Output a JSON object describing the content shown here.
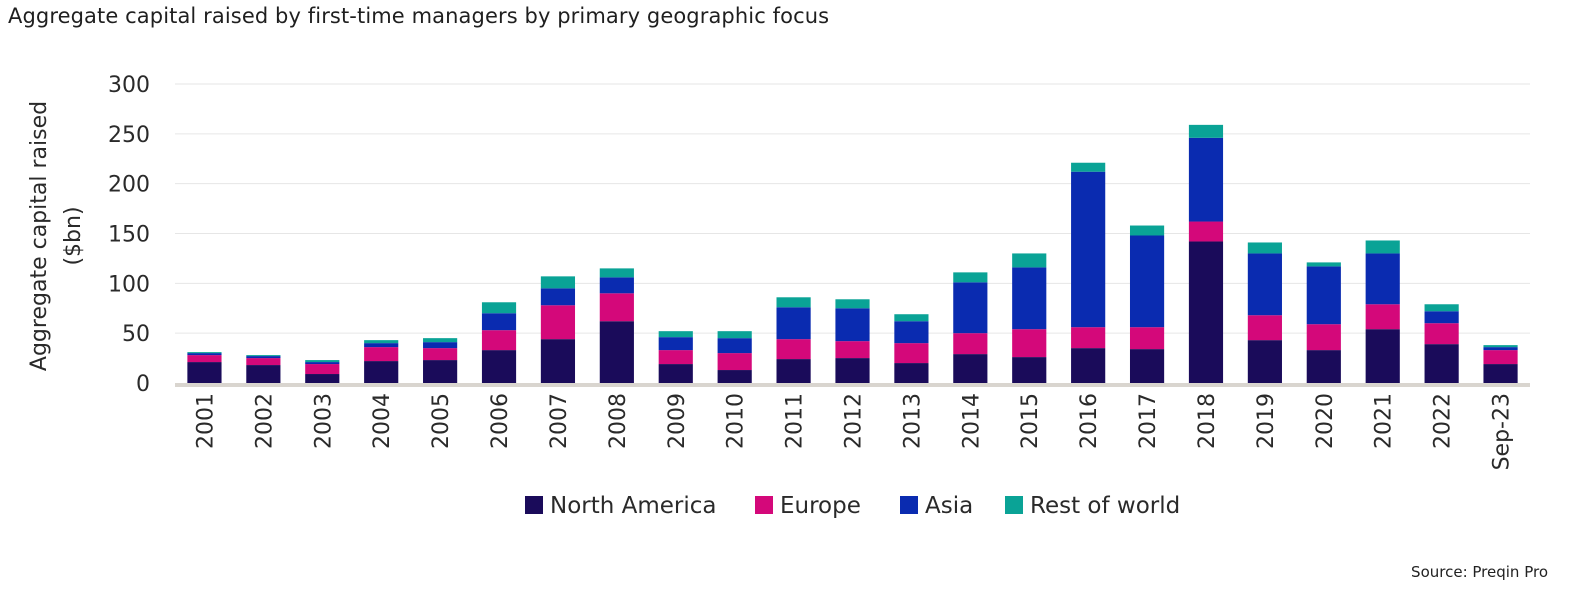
{
  "chart_data": {
    "type": "bar",
    "stacked": true,
    "title": "Aggregate capital raised by first-time managers by primary geographic focus",
    "ylabel": [
      "Aggregate capital raised",
      "($bn)"
    ],
    "xlabel": "",
    "ylim": [
      0,
      300
    ],
    "yticks": [
      0,
      50,
      100,
      150,
      200,
      250,
      300
    ],
    "ytick_labels": [
      "0",
      "50",
      "100",
      "150",
      "200",
      "250",
      "300"
    ],
    "grid": true,
    "legend_position": "bottom-center",
    "categories": [
      "2001",
      "2002",
      "2003",
      "2004",
      "2005",
      "2006",
      "2007",
      "2008",
      "2009",
      "2010",
      "2011",
      "2012",
      "2013",
      "2014",
      "2015",
      "2016",
      "2017",
      "2018",
      "2019",
      "2020",
      "2021",
      "2022",
      "Sep-23"
    ],
    "series": [
      {
        "name": "North America",
        "color": "#1a0b5a",
        "values": [
          21,
          18,
          9,
          22,
          23,
          33,
          44,
          62,
          19,
          13,
          24,
          25,
          20,
          29,
          26,
          35,
          34,
          142,
          43,
          33,
          54,
          39,
          19
        ]
      },
      {
        "name": "Europe",
        "color": "#d4087a",
        "values": [
          7,
          7,
          10,
          14,
          12,
          20,
          34,
          28,
          14,
          17,
          20,
          17,
          20,
          21,
          28,
          21,
          22,
          20,
          25,
          26,
          25,
          21,
          14
        ]
      },
      {
        "name": "Asia",
        "color": "#0a2bb0",
        "values": [
          2,
          2,
          2,
          4,
          6,
          17,
          17,
          16,
          13,
          15,
          32,
          33,
          22,
          51,
          62,
          156,
          92,
          84,
          62,
          58,
          51,
          12,
          3
        ]
      },
      {
        "name": "Rest of world",
        "color": "#0aa396",
        "values": [
          1,
          1,
          2,
          3,
          4,
          11,
          12,
          9,
          6,
          7,
          10,
          9,
          7,
          10,
          14,
          9,
          10,
          13,
          11,
          4,
          13,
          7,
          2
        ]
      }
    ]
  },
  "footer": {
    "source": "Source: Preqin Pro"
  }
}
